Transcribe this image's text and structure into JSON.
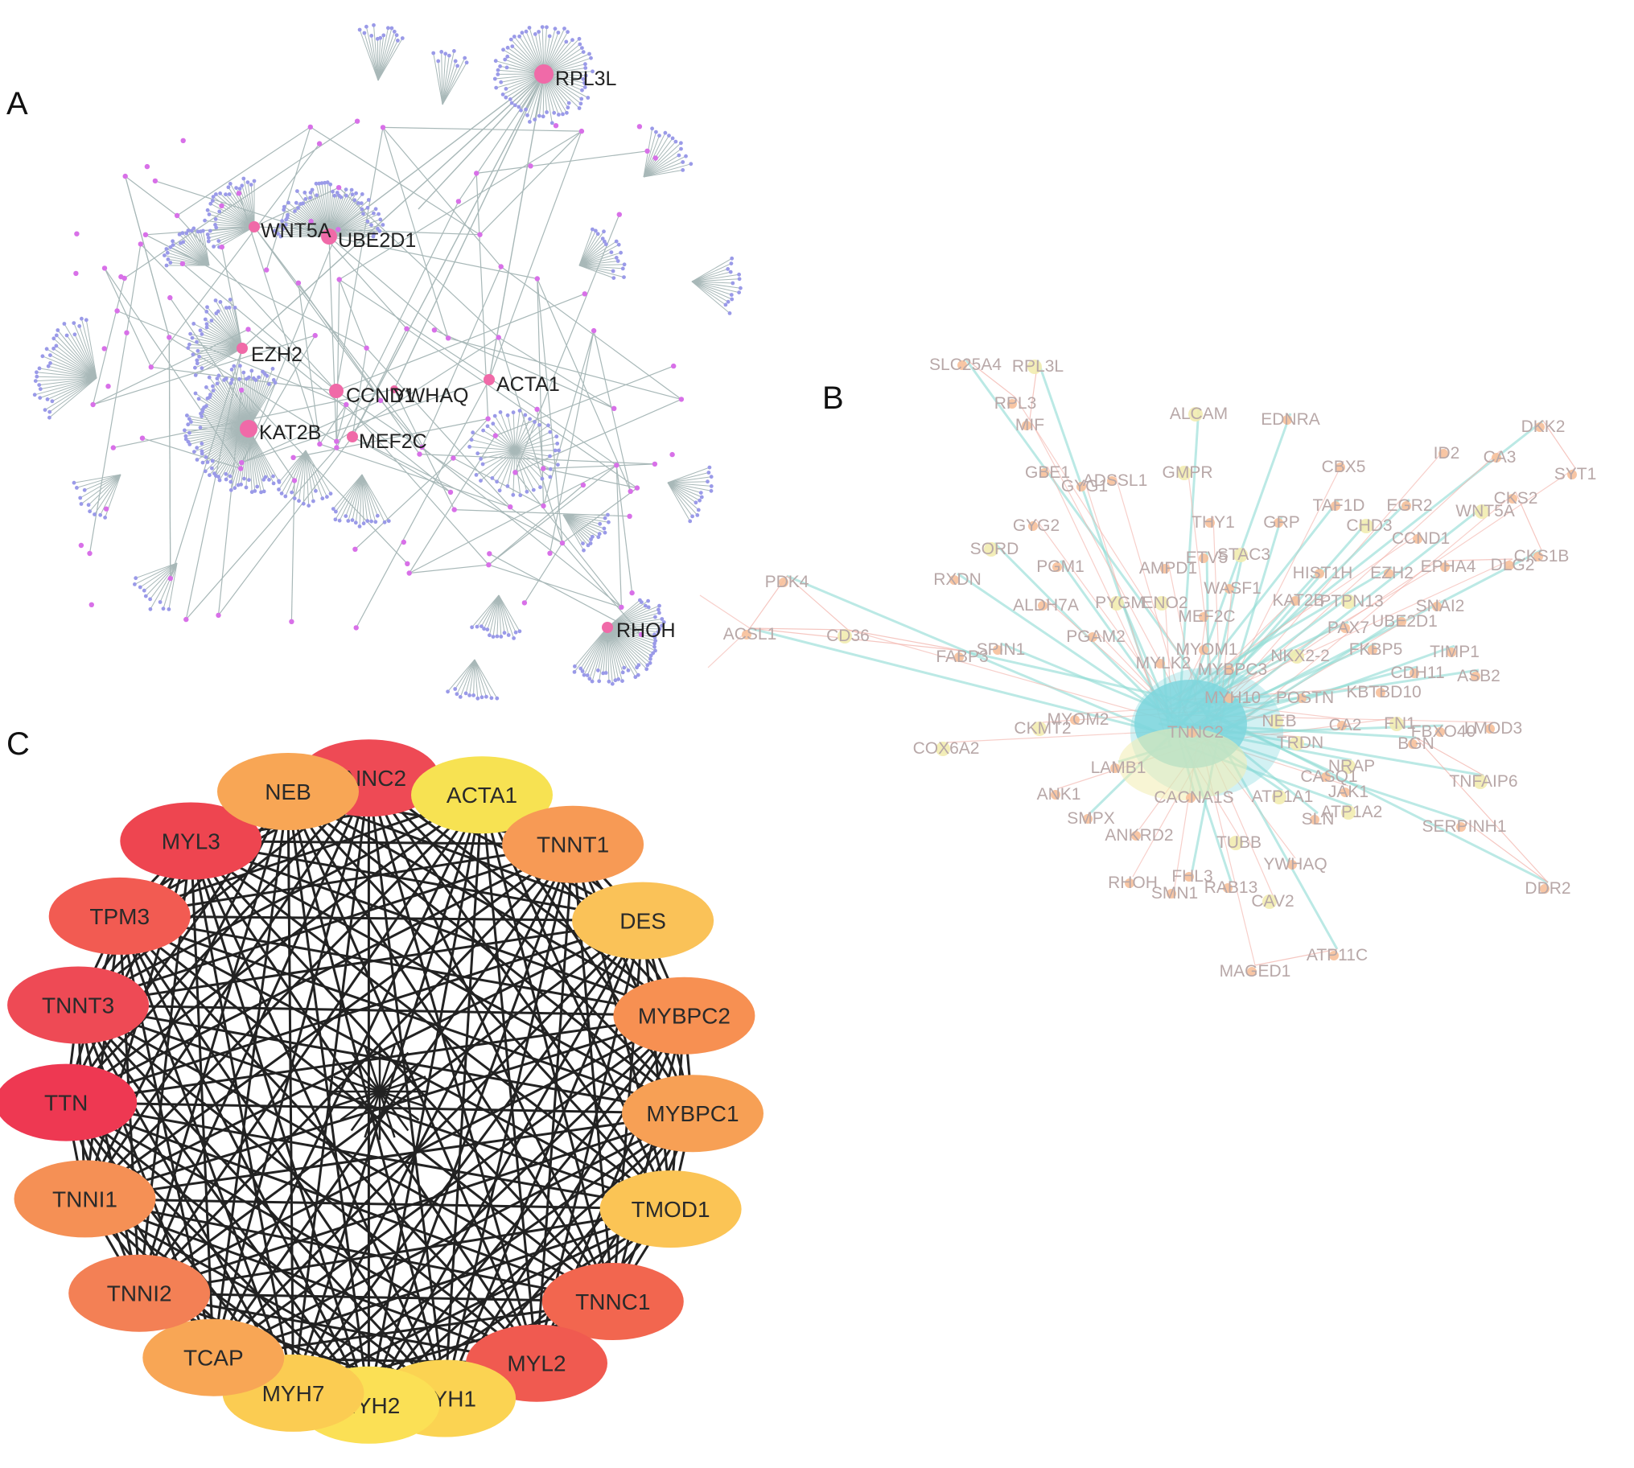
{
  "panels": {
    "A": "A",
    "B": "B",
    "C": "C"
  },
  "panel_a": {
    "hub_labels": [
      "RPL3L",
      "WNT5A",
      "UBE2D1",
      "EZH2",
      "CCND1",
      "YWHAQ",
      "ACTA1",
      "KAT2B",
      "MEF2C",
      "RHOH"
    ],
    "colors": {
      "hub": "#f06aa8",
      "small": "#d870e8",
      "leaf": "#9a9ae8",
      "edge": "#a8b8b8"
    }
  },
  "panel_b": {
    "labels": [
      "SLC25A4",
      "RPL3L",
      "RPL3",
      "MIF",
      "ALCAM",
      "EDNRA",
      "DKK2",
      "ID2",
      "CA3",
      "SYT1",
      "GBE1",
      "GYG1",
      "ADSSL1",
      "GMPR",
      "CBX5",
      "TAF1D",
      "EGR2",
      "CKS2",
      "WNT5A",
      "GYG2",
      "THY1",
      "GRP",
      "CHD3",
      "CCND1",
      "SORD",
      "STAC3",
      "ETV5",
      "CKS1B",
      "RXDN",
      "PGM1",
      "AMPD1",
      "HIST1H",
      "EZH2",
      "EPHA4",
      "DLG2",
      "PDK4",
      "WASF1",
      "ALDH7A",
      "PYGM",
      "ENO2",
      "MEF2C",
      "KAT2B",
      "PTPN13",
      "SNAI2",
      "PAX7",
      "UBE2D1",
      "ACSL1",
      "CD36",
      "PGAM2",
      "FABP3",
      "SPIN1",
      "MYOM1",
      "FKBP5",
      "TIMP1",
      "MYLK2",
      "MYBPC3",
      "NKX2-2",
      "CDH11",
      "ASB2",
      "MYH10",
      "POSTN",
      "KBTBD10",
      "CKMT2",
      "MYOM2",
      "TNNC2",
      "NEB",
      "CA2",
      "FN1",
      "FBXO40",
      "LMOD3",
      "COX6A2",
      "TRDN",
      "LAMB1",
      "NRAP",
      "CASQ1",
      "BGN",
      "TNFAIP6",
      "ANK1",
      "CACNA1S",
      "ATP1A1",
      "JAK1",
      "SMPX",
      "SLN",
      "ATP1A2",
      "SERPINH1",
      "ANKRD2",
      "TUBB",
      "YWHAQ",
      "RHOH",
      "FHL3",
      "RAB13",
      "SMN1",
      "CAV2",
      "DDR2",
      "ATP11C",
      "MAGED1"
    ],
    "colors": {
      "edge_teal": "#8fdcd4",
      "edge_red": "#f2b0a8",
      "core": "#7fd6de",
      "node_orange": "#f7c09a",
      "node_yellow": "#f2ecb0"
    }
  },
  "panel_c": {
    "nodes": [
      {
        "label": "TNNC2",
        "color": "#ee4a55"
      },
      {
        "label": "ACTA1",
        "color": "#f7e252"
      },
      {
        "label": "TNNT1",
        "color": "#f79a55"
      },
      {
        "label": "DES",
        "color": "#fac258"
      },
      {
        "label": "MYBPC2",
        "color": "#f79052"
      },
      {
        "label": "MYBPC1",
        "color": "#f7a055"
      },
      {
        "label": "TMOD1",
        "color": "#fbc455"
      },
      {
        "label": "TNNC1",
        "color": "#f2664f"
      },
      {
        "label": "MYL2",
        "color": "#f05a50"
      },
      {
        "label": "MYH1",
        "color": "#fbd352"
      },
      {
        "label": "MYH2",
        "color": "#fbe055"
      },
      {
        "label": "MYH7",
        "color": "#fbcc52"
      },
      {
        "label": "TCAP",
        "color": "#f8a655"
      },
      {
        "label": "TNNI2",
        "color": "#f38055"
      },
      {
        "label": "TNNI1",
        "color": "#f59055"
      },
      {
        "label": "TTN",
        "color": "#ee3852"
      },
      {
        "label": "TNNT3",
        "color": "#ee4a55"
      },
      {
        "label": "TPM3",
        "color": "#f25b52"
      },
      {
        "label": "MYL3",
        "color": "#ee4550"
      },
      {
        "label": "NEB",
        "color": "#f8a655"
      }
    ],
    "edge_color": "#222222"
  }
}
